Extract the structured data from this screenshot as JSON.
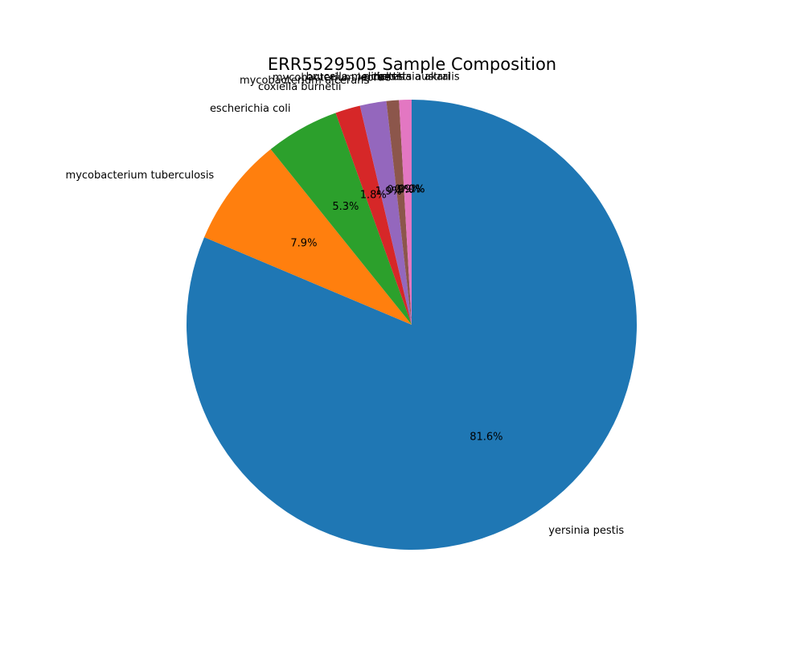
{
  "chart_data": {
    "type": "pie",
    "title": "ERR5529505 Sample Composition",
    "start_angle_deg": 90,
    "direction": "clockwise",
    "slices": [
      {
        "label": "yersinia pestis",
        "value": 81.6,
        "pct_label": "81.6%",
        "color": "#1f77b4"
      },
      {
        "label": "mycobacterium tuberculosis",
        "value": 7.9,
        "pct_label": "7.9%",
        "color": "#ff7f0e"
      },
      {
        "label": "escherichia coli",
        "value": 5.3,
        "pct_label": "5.3%",
        "color": "#2ca02c"
      },
      {
        "label": "coxiella burnetii",
        "value": 1.8,
        "pct_label": "1.8%",
        "color": "#d62728"
      },
      {
        "label": "mycobacterium ulcerans",
        "value": 1.9,
        "pct_label": "1.9%",
        "color": "#9467bd"
      },
      {
        "label": "mycobacterium leprae",
        "value": 0.9,
        "pct_label": "0.9%",
        "color": "#8c564b"
      },
      {
        "label": "brucella melitensis",
        "value": 0.9,
        "pct_label": "0.9%",
        "color": "#e377c2"
      },
      {
        "label": "rickettsia akari",
        "value": 0.0,
        "pct_label": "0.0%",
        "color": "#7f7f7f"
      },
      {
        "label": "rickettsia australis",
        "value": 0.0,
        "pct_label": "0.0%",
        "color": "#bcbd22"
      }
    ]
  }
}
